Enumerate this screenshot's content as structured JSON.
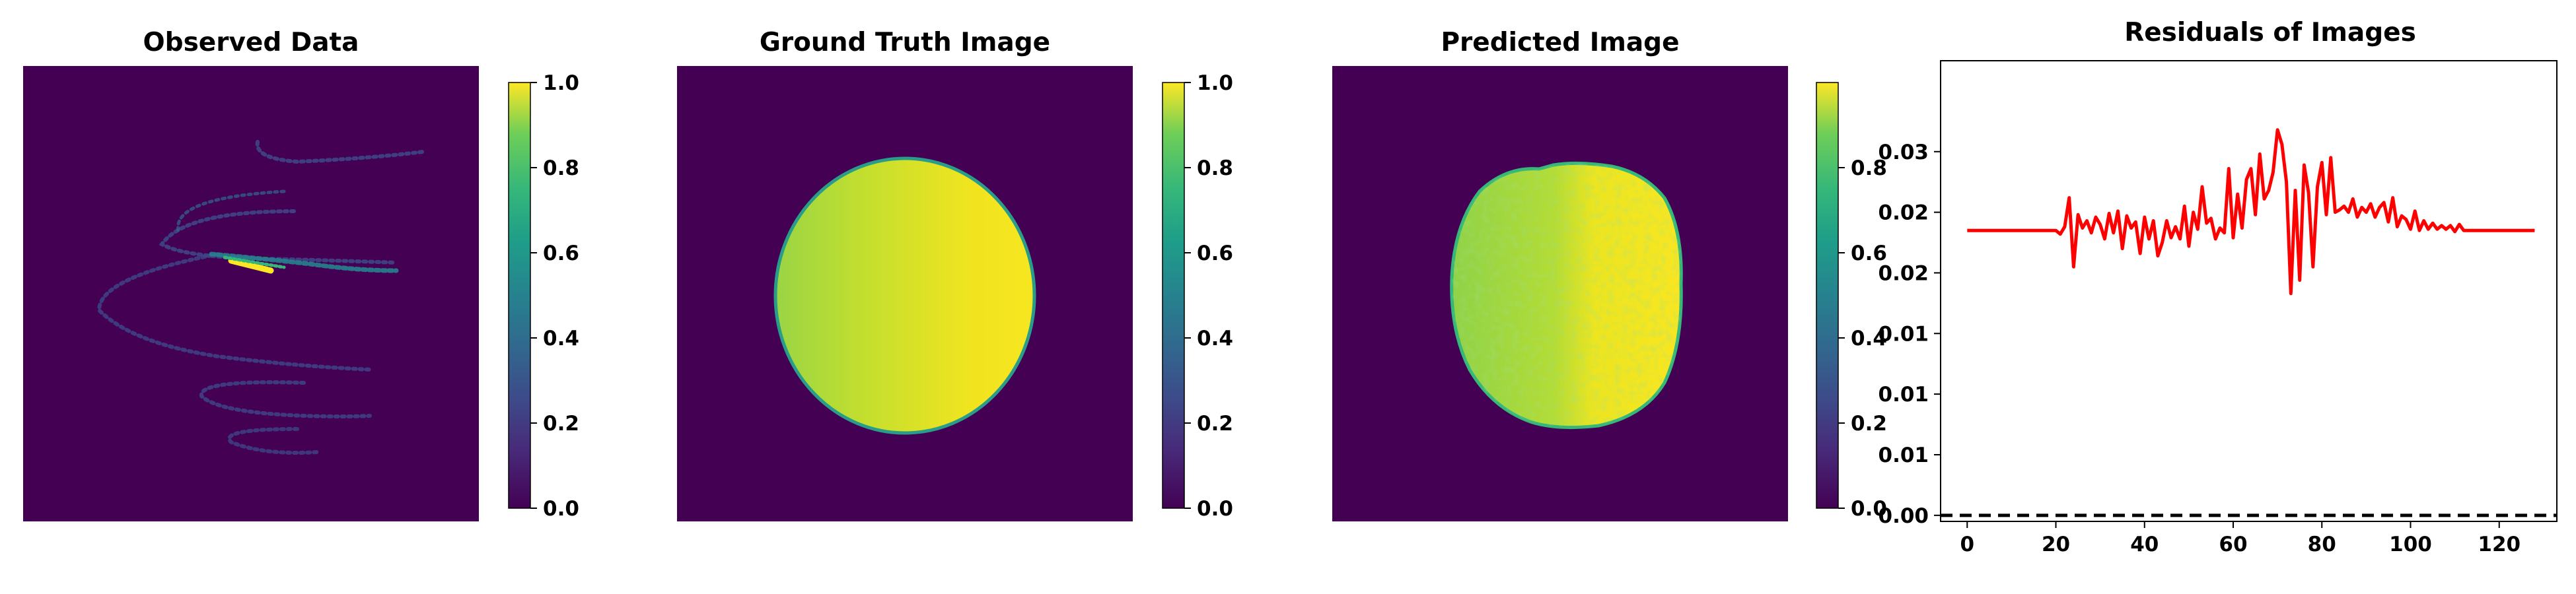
{
  "colors": {
    "background": "#440154",
    "residual_line": "#ff0000",
    "baseline": "#000000",
    "viridis_low": "#440154",
    "viridis_high": "#fde725"
  },
  "panels": [
    {
      "title": "Observed Data",
      "image": "sparse spiral sampling pattern (viridis)",
      "colorbar": {
        "ticks": [
          "0.0",
          "0.2",
          "0.4",
          "0.6",
          "0.8",
          "1.0"
        ],
        "min": 0.0,
        "max": 1.0
      }
    },
    {
      "title": "Ground Truth Image",
      "image": "bright disc with left-to-right gradient (viridis)",
      "colorbar": {
        "ticks": [
          "0.0",
          "0.2",
          "0.4",
          "0.6",
          "0.8",
          "1.0"
        ],
        "min": 0.0,
        "max": 1.0
      }
    },
    {
      "title": "Predicted Image",
      "image": "noisy reconstructed disc (viridis)",
      "colorbar": {
        "ticks": [
          "0.0",
          "0.2",
          "0.4",
          "0.6",
          "0.8"
        ],
        "min": 0.0,
        "max": 0.98
      }
    }
  ],
  "chart_data": {
    "type": "line",
    "title": "Residuals of Images",
    "xlabel": "",
    "ylabel": "",
    "xlim": [
      -6,
      133
    ],
    "ylim": [
      -0.0005,
      0.0375
    ],
    "xticks": [
      "0",
      "20",
      "40",
      "60",
      "80",
      "100",
      "120"
    ],
    "yticks": [
      {
        "value": 0.0,
        "label": "0.00"
      },
      {
        "value": 0.005,
        "label": "0.01"
      },
      {
        "value": 0.01,
        "label": "0.01"
      },
      {
        "value": 0.015,
        "label": "0.01"
      },
      {
        "value": 0.02,
        "label": "0.02"
      },
      {
        "value": 0.025,
        "label": "0.02"
      },
      {
        "value": 0.03,
        "label": "0.03"
      }
    ],
    "baseline": 0.0,
    "grid": false,
    "series": [
      {
        "x": [
          0,
          20,
          21,
          22,
          23,
          24,
          25,
          26,
          27,
          28,
          29,
          30,
          31,
          32,
          33,
          34,
          35,
          36,
          37,
          38,
          39,
          40,
          41,
          42,
          43,
          44,
          45,
          46,
          47,
          48,
          49,
          50,
          51,
          52,
          53,
          54,
          55,
          56,
          57,
          58,
          59,
          60,
          61,
          62,
          63,
          64,
          65,
          66,
          67,
          68,
          69,
          70,
          71,
          72,
          73,
          74,
          75,
          76,
          77,
          78,
          79,
          80,
          81,
          82,
          83,
          84,
          85,
          86,
          87,
          88,
          89,
          90,
          91,
          92,
          93,
          94,
          95,
          96,
          97,
          98,
          99,
          100,
          101,
          102,
          103,
          104,
          105,
          106,
          107,
          108,
          109,
          110,
          111,
          112,
          128
        ],
        "values": [
          0.0235,
          0.0235,
          0.0232,
          0.0238,
          0.0262,
          0.0205,
          0.0248,
          0.0237,
          0.0243,
          0.0233,
          0.0246,
          0.024,
          0.0228,
          0.0249,
          0.0233,
          0.0251,
          0.022,
          0.0247,
          0.0237,
          0.0242,
          0.0216,
          0.0246,
          0.0228,
          0.0243,
          0.0214,
          0.0225,
          0.0243,
          0.0229,
          0.0238,
          0.0228,
          0.0255,
          0.0222,
          0.025,
          0.0236,
          0.0271,
          0.0241,
          0.0245,
          0.0228,
          0.0237,
          0.0233,
          0.0286,
          0.0229,
          0.0265,
          0.0237,
          0.0277,
          0.0286,
          0.0248,
          0.0298,
          0.0261,
          0.0268,
          0.0283,
          0.0318,
          0.0306,
          0.0275,
          0.0183,
          0.0268,
          0.0194,
          0.0289,
          0.0266,
          0.0205,
          0.0271,
          0.0291,
          0.0248,
          0.0295,
          0.025,
          0.0252,
          0.0255,
          0.025,
          0.0261,
          0.0246,
          0.0254,
          0.025,
          0.0257,
          0.0246,
          0.0254,
          0.0258,
          0.0242,
          0.0262,
          0.0238,
          0.0247,
          0.0244,
          0.0236,
          0.0251,
          0.0235,
          0.0243,
          0.0236,
          0.0241,
          0.0236,
          0.0239,
          0.0236,
          0.0239,
          0.0234,
          0.024,
          0.0235,
          0.0235
        ]
      }
    ]
  }
}
